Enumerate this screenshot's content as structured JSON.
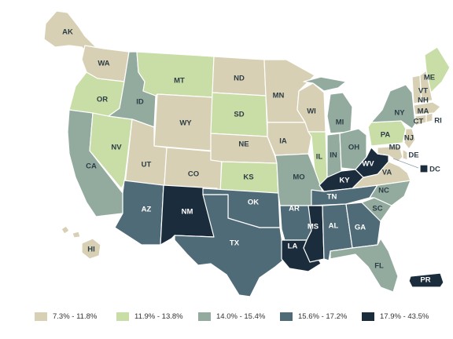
{
  "colors": {
    "c1": "#d8d0b4",
    "c2": "#c8dea6",
    "c3": "#93ab9f",
    "c4": "#4f6b77",
    "c5": "#1b2d3c",
    "dark_text": "#2d3d45",
    "light_text": "#ffffff"
  },
  "legend": [
    {
      "label": "7.3% - 11.8%",
      "color": "#d8d0b4"
    },
    {
      "label": "11.9% - 13.8%",
      "color": "#c8dea6"
    },
    {
      "label": "14.0% - 15.4%",
      "color": "#93ab9f"
    },
    {
      "label": "15.6% - 17.2%",
      "color": "#4f6b77"
    },
    {
      "label": "17.9% - 43.5%",
      "color": "#1b2d3c"
    }
  ],
  "states": [
    {
      "abbr": "WA",
      "class": 1
    },
    {
      "abbr": "OR",
      "class": 2
    },
    {
      "abbr": "CA",
      "class": 3
    },
    {
      "abbr": "NV",
      "class": 2
    },
    {
      "abbr": "ID",
      "class": 3
    },
    {
      "abbr": "MT",
      "class": 2
    },
    {
      "abbr": "WY",
      "class": 1
    },
    {
      "abbr": "UT",
      "class": 1
    },
    {
      "abbr": "CO",
      "class": 1
    },
    {
      "abbr": "AZ",
      "class": 4
    },
    {
      "abbr": "NM",
      "class": 5
    },
    {
      "abbr": "ND",
      "class": 1
    },
    {
      "abbr": "SD",
      "class": 2
    },
    {
      "abbr": "NE",
      "class": 1
    },
    {
      "abbr": "KS",
      "class": 2
    },
    {
      "abbr": "OK",
      "class": 4
    },
    {
      "abbr": "TX",
      "class": 4
    },
    {
      "abbr": "MN",
      "class": 1
    },
    {
      "abbr": "IA",
      "class": 1
    },
    {
      "abbr": "MO",
      "class": 3
    },
    {
      "abbr": "AR",
      "class": 4
    },
    {
      "abbr": "LA",
      "class": 5
    },
    {
      "abbr": "WI",
      "class": 1
    },
    {
      "abbr": "IL",
      "class": 2
    },
    {
      "abbr": "MI",
      "class": 3
    },
    {
      "abbr": "IN",
      "class": 3
    },
    {
      "abbr": "OH",
      "class": 3
    },
    {
      "abbr": "KY",
      "class": 5
    },
    {
      "abbr": "TN",
      "class": 4
    },
    {
      "abbr": "MS",
      "class": 5
    },
    {
      "abbr": "AL",
      "class": 4
    },
    {
      "abbr": "GA",
      "class": 4
    },
    {
      "abbr": "FL",
      "class": 3
    },
    {
      "abbr": "SC",
      "class": 3
    },
    {
      "abbr": "NC",
      "class": 3
    },
    {
      "abbr": "VA",
      "class": 1
    },
    {
      "abbr": "WV",
      "class": 5
    },
    {
      "abbr": "PA",
      "class": 2
    },
    {
      "abbr": "NY",
      "class": 3
    },
    {
      "abbr": "VT",
      "class": 1
    },
    {
      "abbr": "NH",
      "class": 1
    },
    {
      "abbr": "ME",
      "class": 2
    },
    {
      "abbr": "MA",
      "class": 1
    },
    {
      "abbr": "RI",
      "class": 1
    },
    {
      "abbr": "CT",
      "class": 1
    },
    {
      "abbr": "NJ",
      "class": 1
    },
    {
      "abbr": "DE",
      "class": 1
    },
    {
      "abbr": "MD",
      "class": 1
    },
    {
      "abbr": "DC",
      "class": 5
    },
    {
      "abbr": "AK",
      "class": 1
    },
    {
      "abbr": "HI",
      "class": 1
    },
    {
      "abbr": "PR",
      "class": 5
    }
  ]
}
